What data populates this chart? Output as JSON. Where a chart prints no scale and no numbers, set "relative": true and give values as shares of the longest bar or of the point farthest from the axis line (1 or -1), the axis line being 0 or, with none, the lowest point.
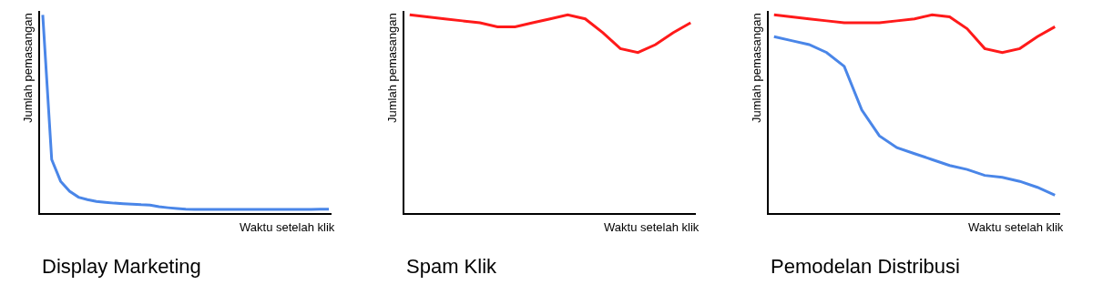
{
  "chart_data": [
    {
      "type": "line",
      "title": "Display Marketing",
      "xlabel": "Waktu setelah klik",
      "ylabel": "Jumlah pemasangan",
      "relative": true,
      "grid": false,
      "marker": "none",
      "line_style": "solid",
      "categories": [
        null,
        null,
        null,
        null,
        null,
        null,
        null,
        null,
        null,
        null,
        null,
        null,
        null,
        null,
        null,
        null,
        null,
        null,
        null,
        null,
        null,
        null,
        null,
        null,
        null,
        null,
        null,
        null,
        null,
        null,
        null,
        null,
        null
      ],
      "series": [
        {
          "color": "#4a86e8",
          "values": [
            1,
            0.27,
            0.16,
            0.11,
            0.08,
            0.068,
            0.059,
            0.054,
            0.05,
            0.047,
            0.045,
            0.042,
            0.04,
            0.032,
            0.027,
            0.023,
            0.02,
            0.018,
            0.018,
            0.018,
            0.018,
            0.018,
            0.018,
            0.018,
            0.018,
            0.018,
            0.018,
            0.018,
            0.018,
            0.018,
            0.018,
            0.02,
            0.02
          ]
        }
      ]
    },
    {
      "type": "line",
      "title": "Spam Klik",
      "xlabel": "Waktu setelah klik",
      "ylabel": "Jumlah pemasangan",
      "relative": true,
      "grid": false,
      "marker": "none",
      "line_style": "solid",
      "categories": [
        null,
        null,
        null,
        null,
        null,
        null,
        null,
        null,
        null,
        null,
        null,
        null,
        null,
        null,
        null,
        null,
        null
      ],
      "series": [
        {
          "color": "#ff1a1a",
          "values": [
            1,
            0.99,
            0.98,
            0.97,
            0.96,
            0.94,
            0.94,
            0.96,
            0.98,
            1,
            0.98,
            0.91,
            0.83,
            0.81,
            0.85,
            0.91,
            0.96
          ]
        }
      ]
    },
    {
      "type": "line",
      "title": "Pemodelan Distribusi",
      "xlabel": "Waktu setelah klik",
      "ylabel": "Jumlah pemasangan",
      "relative": true,
      "grid": false,
      "marker": "none",
      "line_style": "solid",
      "categories": [
        null,
        null,
        null,
        null,
        null,
        null,
        null,
        null,
        null,
        null,
        null,
        null,
        null,
        null,
        null,
        null,
        null
      ],
      "series": [
        {
          "color": "#ff1a1a",
          "values": [
            1,
            0.99,
            0.98,
            0.97,
            0.96,
            0.96,
            0.96,
            0.97,
            0.98,
            1,
            0.99,
            0.93,
            0.83,
            0.81,
            0.83,
            0.89,
            0.94
          ]
        },
        {
          "color": "#4a86e8",
          "values": [
            0.89,
            0.87,
            0.85,
            0.81,
            0.74,
            0.52,
            0.39,
            0.33,
            0.3,
            0.27,
            0.24,
            0.22,
            0.19,
            0.18,
            0.16,
            0.13,
            0.09
          ]
        }
      ]
    }
  ]
}
